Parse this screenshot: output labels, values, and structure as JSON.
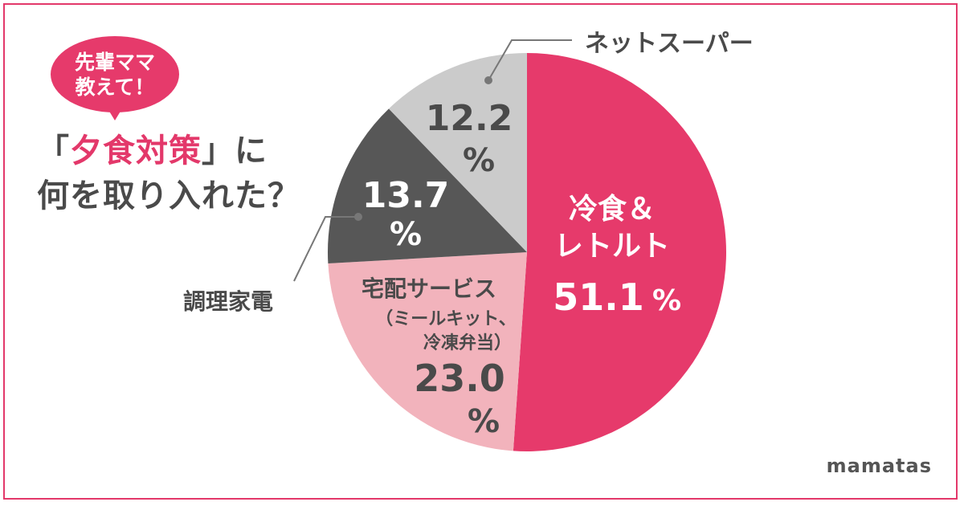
{
  "bubble": {
    "line1": "先輩ママ",
    "line2": "教えて！"
  },
  "question": {
    "q1_open": "「",
    "q1_hl": "夕食対策",
    "q1_close": "」に",
    "q2": "何を取り入れた？"
  },
  "brand": "mamatas",
  "chart_data": {
    "type": "pie",
    "title": "",
    "unit": "%",
    "slices": [
      {
        "label": "冷食&レトルト",
        "label_lines": [
          "冷食＆",
          "レトルト"
        ],
        "value": 51.1,
        "value_text": "51.1",
        "pct_text": "%",
        "color": "#e63a6b"
      },
      {
        "label": "宅配サービス（ミールキット、冷凍弁当）",
        "label_lines": [
          "宅配サービス",
          "（ミールキット、",
          "冷凍弁当）"
        ],
        "value": 23.0,
        "value_text": "23.0",
        "pct_text": "%",
        "color": "#f2b3bc"
      },
      {
        "label": "調理家電",
        "label_lines": [],
        "callout": "調理家電",
        "value": 13.7,
        "value_text": "13.7",
        "pct_text": "%",
        "color": "#575757"
      },
      {
        "label": "ネットスーパー",
        "label_lines": [],
        "callout": "ネットスーパー",
        "value": 12.2,
        "value_text": "12.2",
        "pct_text": "%",
        "color": "#cbcbcb"
      }
    ]
  }
}
